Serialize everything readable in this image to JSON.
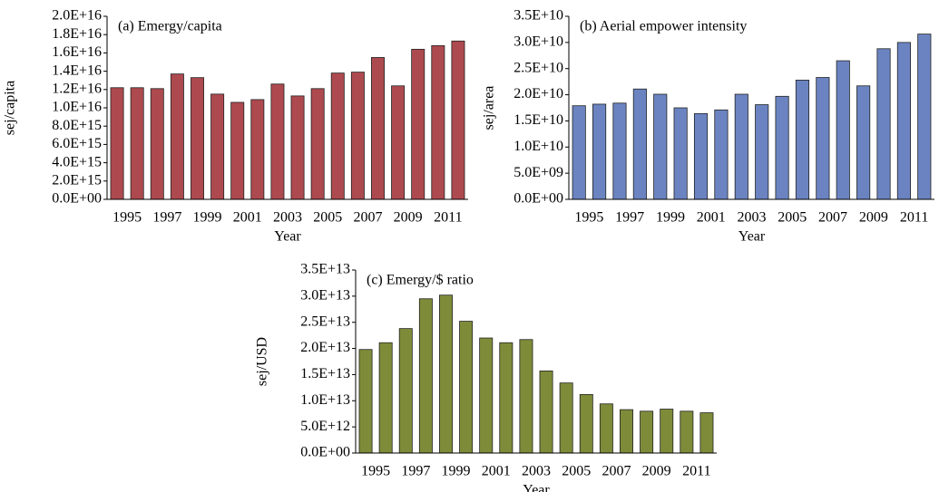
{
  "chart_data": [
    {
      "type": "bar",
      "title": "(a) Emergy/capita",
      "x_label": "Year",
      "y_label": "sej/capita",
      "color": "#ad4a4f",
      "categories": [
        "1995",
        null,
        "1997",
        null,
        "1999",
        null,
        "2001",
        null,
        "2003",
        null,
        "2005",
        null,
        "2007",
        null,
        "2009",
        null,
        "2011",
        null
      ],
      "values": [
        1.22e+16,
        1.22e+16,
        1.21e+16,
        1.37e+16,
        1.33e+16,
        1.15e+16,
        1.06e+16,
        1.09e+16,
        1.26e+16,
        1.13e+16,
        1.21e+16,
        1.38e+16,
        1.39e+16,
        1.55e+16,
        1.24e+16,
        1.64e+16,
        1.68e+16,
        1.73e+16
      ],
      "ylim": [
        0,
        2e+16
      ],
      "yticks": [
        {
          "value": 0,
          "label": "0.0E+00"
        },
        {
          "value": 2000000000000000.0,
          "label": "2.0E+15"
        },
        {
          "value": 4000000000000000.0,
          "label": "4.0E+15"
        },
        {
          "value": 6000000000000000.0,
          "label": "6.0E+15"
        },
        {
          "value": 8000000000000000.0,
          "label": "8.0E+15"
        },
        {
          "value": 1e+16,
          "label": "1.0E+16"
        },
        {
          "value": 1.2e+16,
          "label": "1.2E+16"
        },
        {
          "value": 1.4e+16,
          "label": "1.4E+16"
        },
        {
          "value": 1.6e+16,
          "label": "1.6E+16"
        },
        {
          "value": 1.8e+16,
          "label": "1.8E+16"
        },
        {
          "value": 2e+16,
          "label": "2.0E+16"
        }
      ]
    },
    {
      "type": "bar",
      "title": "(b) Aerial empower intensity",
      "x_label": "Year",
      "y_label": "sej/area",
      "color": "#6b84c1",
      "categories": [
        "1995",
        null,
        "1997",
        null,
        "1999",
        null,
        "2001",
        null,
        "2003",
        null,
        "2005",
        null,
        "2007",
        null,
        "2009",
        null,
        "2011",
        null
      ],
      "values": [
        17900000000.0,
        18200000000.0,
        18400000000.0,
        21100000000.0,
        20100000000.0,
        17500000000.0,
        16400000000.0,
        17100000000.0,
        20100000000.0,
        18100000000.0,
        19700000000.0,
        22800000000.0,
        23300000000.0,
        26500000000.0,
        21700000000.0,
        28800000000.0,
        30000000000.0,
        31600000000.0
      ],
      "ylim": [
        0,
        35000000000.0
      ],
      "yticks": [
        {
          "value": 0,
          "label": "0.0E+00"
        },
        {
          "value": 5000000000.0,
          "label": "5.0E+09"
        },
        {
          "value": 10000000000.0,
          "label": "1.0E+10"
        },
        {
          "value": 15000000000.0,
          "label": "1.5E+10"
        },
        {
          "value": 20000000000.0,
          "label": "2.0E+10"
        },
        {
          "value": 25000000000.0,
          "label": "2.5E+10"
        },
        {
          "value": 30000000000.0,
          "label": "3.0E+10"
        },
        {
          "value": 35000000000.0,
          "label": "3.5E+10"
        }
      ]
    },
    {
      "type": "bar",
      "title": "(c) Emergy/$ ratio",
      "x_label": "Year",
      "y_label": "sej/USD",
      "color": "#7e8c3a",
      "categories": [
        "1995",
        null,
        "1997",
        null,
        "1999",
        null,
        "2001",
        null,
        "2003",
        null,
        "2005",
        null,
        "2007",
        null,
        "2009",
        null,
        "2011",
        null
      ],
      "values": [
        19800000000000.0,
        21100000000000.0,
        23800000000000.0,
        29500000000000.0,
        30200000000000.0,
        25200000000000.0,
        22000000000000.0,
        21100000000000.0,
        21700000000000.0,
        15700000000000.0,
        13400000000000.0,
        11200000000000.0,
        9400000000000.0,
        8300000000000.0,
        8000000000000.0,
        8400000000000.0,
        8000000000000.0,
        7700000000000.0
      ],
      "ylim": [
        0,
        35000000000000.0
      ],
      "yticks": [
        {
          "value": 0,
          "label": "0.0E+00"
        },
        {
          "value": 5000000000000.0,
          "label": "5.0E+12"
        },
        {
          "value": 10000000000000.0,
          "label": "1.0E+13"
        },
        {
          "value": 15000000000000.0,
          "label": "1.5E+13"
        },
        {
          "value": 20000000000000.0,
          "label": "2.0E+13"
        },
        {
          "value": 25000000000000.0,
          "label": "2.5E+13"
        },
        {
          "value": 30000000000000.0,
          "label": "3.0E+13"
        },
        {
          "value": 35000000000000.0,
          "label": "3.5E+13"
        }
      ]
    }
  ]
}
